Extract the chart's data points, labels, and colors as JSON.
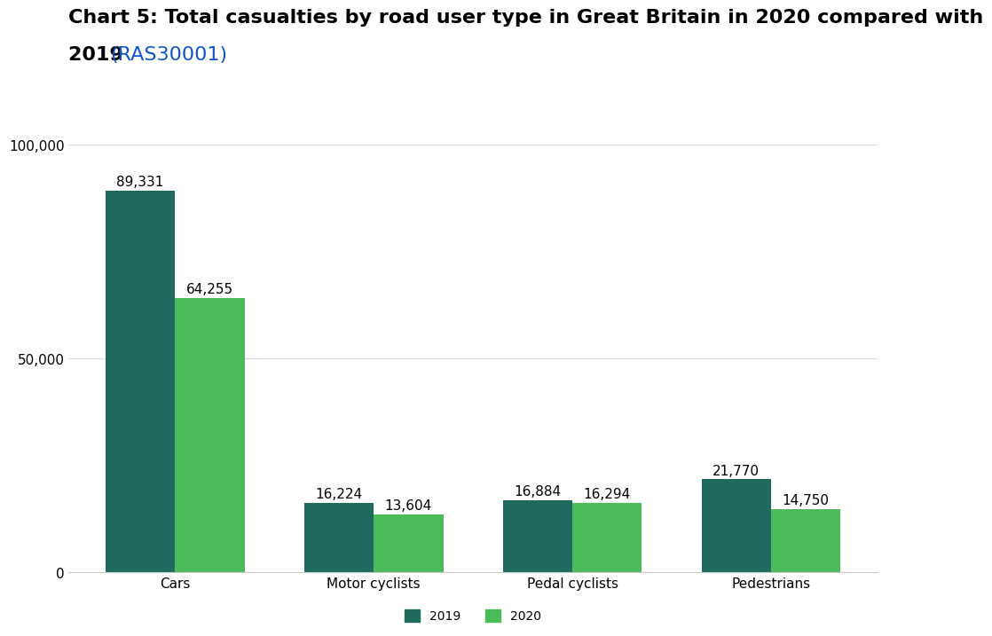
{
  "title_line1": "Chart 5: Total casualties by road user type in Great Britain in 2020 compared with",
  "title_line2": "2019 ",
  "title_link": "(RAS30001)",
  "categories": [
    "Cars",
    "Motor cyclists",
    "Pedal cyclists",
    "Pedestrians"
  ],
  "values_2019": [
    89331,
    16224,
    16884,
    21770
  ],
  "values_2020": [
    64255,
    13604,
    16294,
    14750
  ],
  "labels_2019": [
    "89,331",
    "16,224",
    "16,884",
    "21,770"
  ],
  "labels_2020": [
    "64,255",
    "13,604",
    "16,294",
    "14,750"
  ],
  "color_2019": "#1e6b5e",
  "color_2020": "#4cbb5a",
  "background_color": "#ffffff",
  "ylim": [
    0,
    110000
  ],
  "yticks": [
    0,
    50000,
    100000
  ],
  "ytick_labels": [
    "0",
    "50,000",
    "100,000"
  ],
  "legend_2019": "2019",
  "legend_2020": "2020",
  "bar_width": 0.35,
  "title_fontsize": 16,
  "axis_fontsize": 11,
  "label_fontsize": 11,
  "legend_fontsize": 10
}
